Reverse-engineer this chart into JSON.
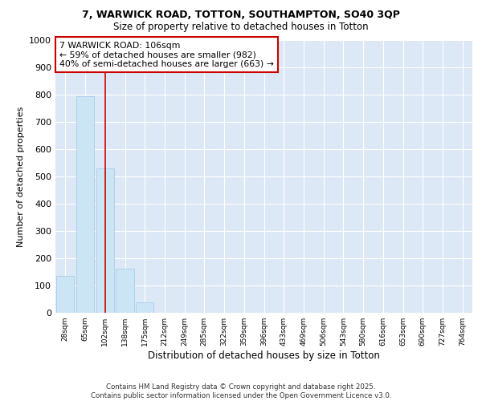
{
  "title1": "7, WARWICK ROAD, TOTTON, SOUTHAMPTON, SO40 3QP",
  "title2": "Size of property relative to detached houses in Totton",
  "xlabel": "Distribution of detached houses by size in Totton",
  "ylabel": "Number of detached properties",
  "categories": [
    "28sqm",
    "65sqm",
    "102sqm",
    "138sqm",
    "175sqm",
    "212sqm",
    "249sqm",
    "285sqm",
    "322sqm",
    "359sqm",
    "396sqm",
    "433sqm",
    "469sqm",
    "506sqm",
    "543sqm",
    "580sqm",
    "616sqm",
    "653sqm",
    "690sqm",
    "727sqm",
    "764sqm"
  ],
  "values": [
    135,
    793,
    530,
    163,
    37,
    0,
    0,
    0,
    0,
    0,
    0,
    0,
    0,
    0,
    0,
    0,
    0,
    0,
    0,
    0,
    0
  ],
  "bar_color": "#cce5f5",
  "bar_edge_color": "#a8cceb",
  "annotation_text": "7 WARWICK ROAD: 106sqm\n← 59% of detached houses are smaller (982)\n40% of semi-detached houses are larger (663) →",
  "annotation_box_color": "#ffffff",
  "annotation_border_color": "#cc0000",
  "ylim": [
    0,
    1000
  ],
  "yticks": [
    0,
    100,
    200,
    300,
    400,
    500,
    600,
    700,
    800,
    900,
    1000
  ],
  "figure_bg_color": "#ffffff",
  "plot_bg_color": "#dce8f5",
  "footer": "Contains HM Land Registry data © Crown copyright and database right 2025.\nContains public sector information licensed under the Open Government Licence v3.0.",
  "grid_color": "#ffffff",
  "vline_color": "#cc0000",
  "vline_x": 2.0
}
